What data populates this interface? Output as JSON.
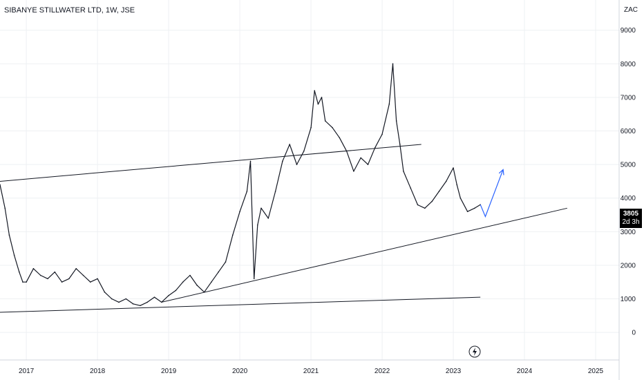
{
  "header": {
    "title": "SIBANYE STILLWATER LTD, 1W, JSE",
    "unit": "ZAC"
  },
  "last_price": {
    "price": "3805",
    "countdown": "2d 3h"
  },
  "icons": {
    "event_marker": "lightning-icon"
  },
  "colors": {
    "line": "#131722",
    "grid": "#eef0f3",
    "projection": "#2962ff",
    "tag_bg": "#000000"
  },
  "chart_data": {
    "type": "line",
    "title": "SIBANYE STILLWATER LTD, 1W, JSE",
    "xlabel": "",
    "ylabel": "ZAC",
    "x_ticks": [
      "2017",
      "2018",
      "2019",
      "2020",
      "2021",
      "2022",
      "2023",
      "2024",
      "2025"
    ],
    "y_ticks": [
      0,
      1000,
      2000,
      3000,
      4000,
      5000,
      6000,
      7000,
      8000,
      9000
    ],
    "xlim": [
      2016.63,
      2025.33
    ],
    "ylim": [
      -820,
      9900
    ],
    "grid": true,
    "series": [
      {
        "x": [
          2016.63,
          2016.7,
          2016.76,
          2016.83,
          2016.9,
          2016.95,
          2017.0,
          2017.1,
          2017.2,
          2017.3,
          2017.4,
          2017.5,
          2017.6,
          2017.7,
          2017.8,
          2017.9,
          2018.0,
          2018.1,
          2018.2,
          2018.3,
          2018.4,
          2018.5,
          2018.6,
          2018.7,
          2018.8,
          2018.9,
          2019.0,
          2019.1,
          2019.2,
          2019.3,
          2019.4,
          2019.5,
          2019.6,
          2019.7,
          2019.8,
          2019.9,
          2020.0,
          2020.1,
          2020.15,
          2020.2,
          2020.25,
          2020.3,
          2020.4,
          2020.5,
          2020.6,
          2020.7,
          2020.8,
          2020.9,
          2021.0,
          2021.05,
          2021.1,
          2021.15,
          2021.2,
          2021.3,
          2021.4,
          2021.5,
          2021.6,
          2021.7,
          2021.8,
          2021.9,
          2022.0,
          2022.1,
          2022.15,
          2022.2,
          2022.25,
          2022.3,
          2022.4,
          2022.5,
          2022.6,
          2022.7,
          2022.8,
          2022.9,
          2023.0,
          2023.05,
          2023.1,
          2023.2,
          2023.3,
          2023.38
        ],
        "y": [
          4400,
          3700,
          2900,
          2300,
          1800,
          1500,
          1500,
          1900,
          1700,
          1600,
          1800,
          1500,
          1600,
          1900,
          1700,
          1500,
          1600,
          1200,
          1000,
          900,
          1000,
          850,
          800,
          900,
          1050,
          900,
          1100,
          1250,
          1500,
          1700,
          1400,
          1200,
          1500,
          1800,
          2100,
          2900,
          3600,
          4200,
          5100,
          1600,
          3200,
          3700,
          3400,
          4200,
          5100,
          5600,
          5000,
          5400,
          6100,
          7200,
          6800,
          7000,
          6300,
          6100,
          5800,
          5400,
          4800,
          5200,
          5000,
          5500,
          5900,
          6800,
          8000,
          6300,
          5600,
          4800,
          4300,
          3800,
          3700,
          3900,
          4200,
          4500,
          4900,
          4400,
          4000,
          3600,
          3700,
          3805
        ]
      }
    ],
    "trendlines": [
      {
        "x": [
          2016.63,
          2022.55
        ],
        "y": [
          4500,
          5600
        ]
      },
      {
        "x": [
          2018.9,
          2024.6
        ],
        "y": [
          900,
          3700
        ]
      },
      {
        "x": [
          2016.63,
          2023.38
        ],
        "y": [
          600,
          1050
        ]
      }
    ],
    "projection": {
      "x": [
        2023.38,
        2023.45,
        2023.7
      ],
      "y": [
        3805,
        3450,
        4850
      ]
    }
  }
}
